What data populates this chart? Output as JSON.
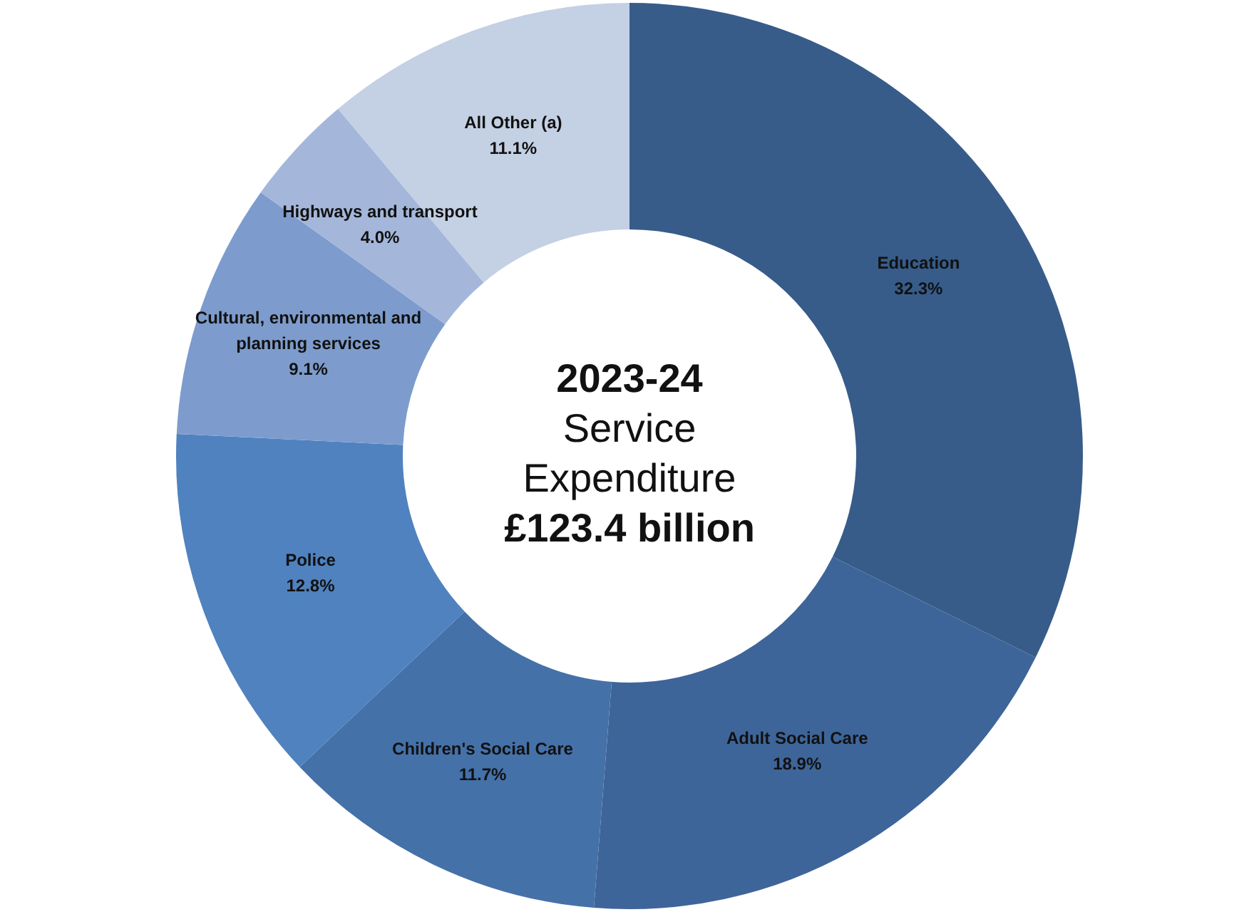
{
  "chart_data": {
    "type": "donut",
    "title": "2023-24",
    "subtitle": "Service Expenditure",
    "annotations": [
      "£123.4 billion"
    ],
    "categories": [
      "Education",
      "Adult Social Care",
      "Children's Social Care",
      "Police",
      "Cultural, environmental and planning services",
      "Highways and transport",
      "All Other (a)"
    ],
    "values": [
      32.3,
      18.9,
      11.7,
      12.8,
      9.1,
      4.0,
      11.1
    ],
    "value_labels": [
      "32.3%",
      "18.9%",
      "11.7%",
      "12.8%",
      "9.1%",
      "4.0%",
      "11.1%"
    ],
    "colors": [
      "#375c8a",
      "#3e6599",
      "#4571a9",
      "#4f82bf",
      "#7d9ccd",
      "#a4b7da",
      "#c4d0e3"
    ],
    "legend": false
  }
}
